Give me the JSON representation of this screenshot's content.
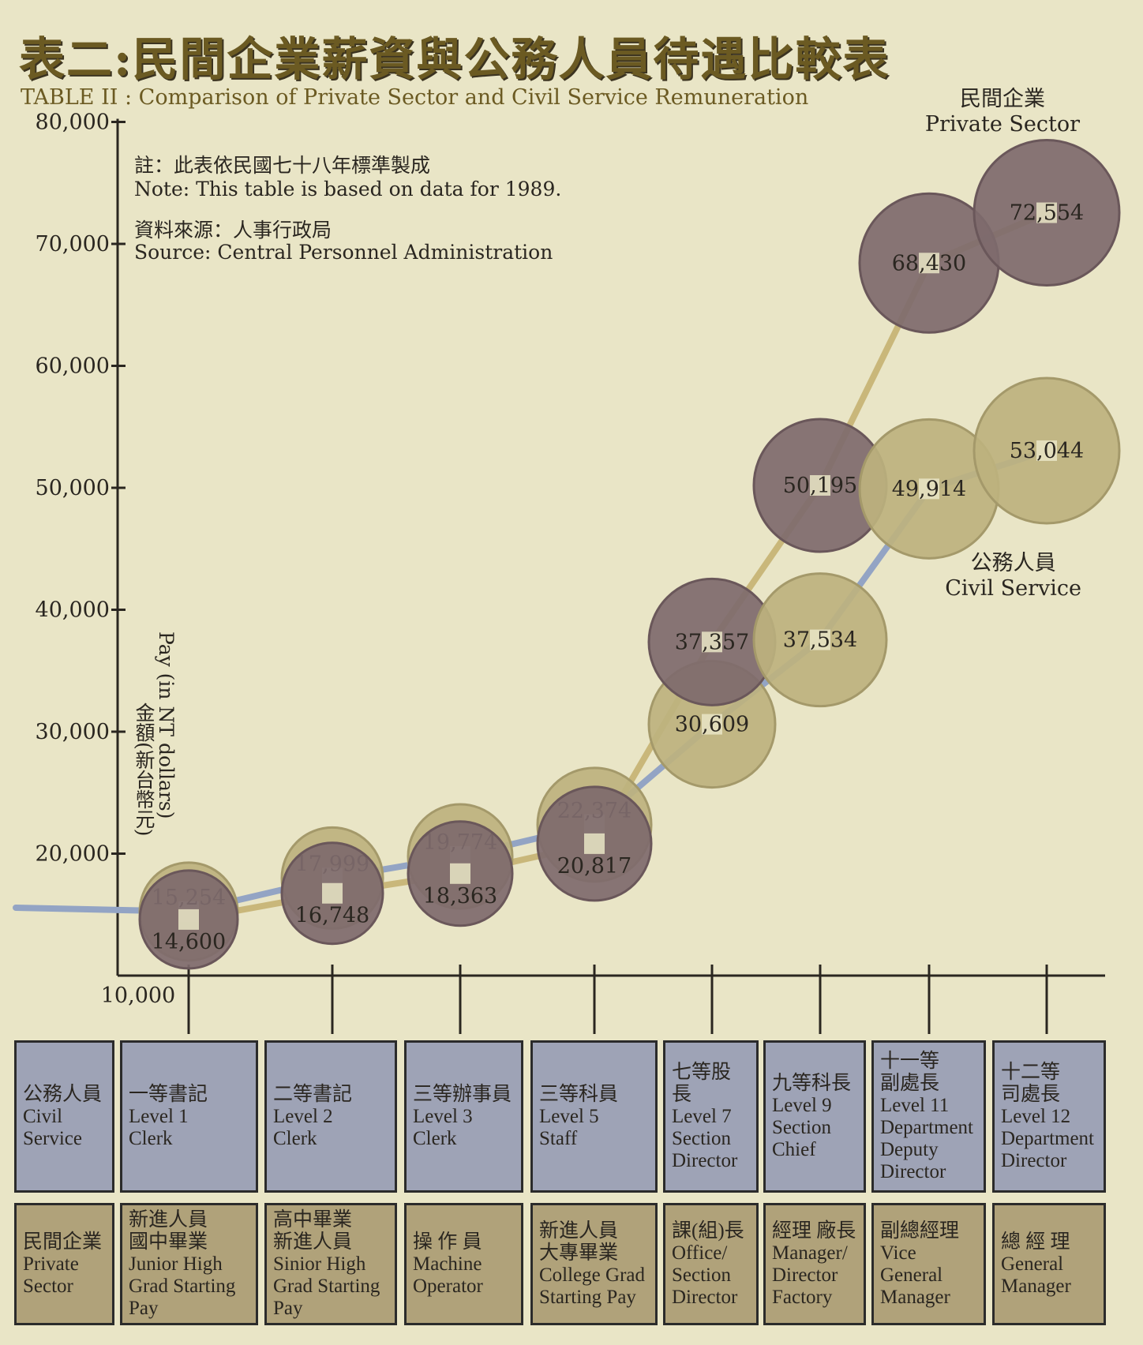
{
  "title_zh": "表二:民間企業薪資與公務人員待遇比較表",
  "title_en": "TABLE II : Comparison of Private Sector and Civil Service Remuneration",
  "notes": {
    "note_zh": "註：此表依民國七十八年標準製成",
    "note_en": "Note:  This table is based on data for 1989.",
    "source_zh": "資料來源：人事行政局",
    "source_en": "Source:  Central Personnel Administration"
  },
  "legend": {
    "private_zh": "民間企業",
    "private_en": "Private Sector",
    "civil_zh": "公務人員",
    "civil_en": "Civil Service"
  },
  "chart_data": {
    "type": "line",
    "title": "TABLE II : Comparison of Private Sector and Civil Service Remuneration",
    "ylabel": "Pay (in NT dollars)",
    "ylabel_zh": "金額(新台幣元)",
    "ylim": [
      10000,
      80000
    ],
    "yticks": [
      "10,000",
      "20,000",
      "30,000",
      "40,000",
      "50,000",
      "60,000",
      "70,000",
      "80,000"
    ],
    "ytick_values": [
      10000,
      20000,
      30000,
      40000,
      50000,
      60000,
      70000,
      80000
    ],
    "categories": [
      "Level 1",
      "Level 2",
      "Level 3",
      "Level 5",
      "Level 7",
      "Level 9",
      "Level 11",
      "Level 12"
    ],
    "series": [
      {
        "name": "Civil Service",
        "color": "#bdb27e",
        "values": [
          15254,
          17999,
          19774,
          22374,
          30609,
          37534,
          49914,
          53044
        ],
        "labels": [
          "15,254",
          "17,999",
          "19,774",
          "22,374",
          "30,609",
          "37,534",
          "49,914",
          "53,044"
        ]
      },
      {
        "name": "Private Sector",
        "color": "#7e6a6c",
        "values": [
          14600,
          16748,
          18363,
          20817,
          37357,
          50195,
          68430,
          72554
        ],
        "labels": [
          "14,600",
          "16,748",
          "18,363",
          "20,817",
          "37,357",
          "50,195",
          "68,430",
          "72,554"
        ]
      }
    ]
  },
  "table": {
    "civil_row": [
      [
        "公務人員",
        "Civil",
        "Service"
      ],
      [
        "一等書記",
        "Level 1",
        "Clerk"
      ],
      [
        "二等書記",
        "Level 2",
        "Clerk"
      ],
      [
        "三等辦事員",
        "Level 3",
        "Clerk"
      ],
      [
        "三等科員",
        "Level 5",
        "Staff"
      ],
      [
        "七等股長",
        "Level 7",
        "Section",
        "Director"
      ],
      [
        "九等科長",
        "Level 9",
        "Section",
        "Chief"
      ],
      [
        "十一等",
        "副處長",
        "Level 11",
        "Department",
        "Deputy",
        "Director"
      ],
      [
        "十二等",
        "司處長",
        "Level 12",
        "Department",
        "Director"
      ]
    ],
    "private_row": [
      [
        "民間企業",
        "Private",
        "Sector"
      ],
      [
        "新進人員",
        "國中畢業",
        "Junior High",
        "Grad Starting",
        "Pay"
      ],
      [
        "高中畢業",
        "新進人員",
        "Sinior High",
        "Grad Starting",
        "Pay"
      ],
      [
        "操 作 員",
        "Machine",
        "Operator"
      ],
      [
        "新進人員",
        "大專畢業",
        "College Grad",
        "Starting Pay"
      ],
      [
        "課(組)長",
        "Office/",
        "Section",
        "Director"
      ],
      [
        "經理 廠長",
        "Manager/",
        "Director",
        "Factory"
      ],
      [
        "副總經理",
        "Vice",
        "General",
        "Manager"
      ],
      [
        "總 經 理",
        "General",
        "Manager"
      ]
    ]
  }
}
